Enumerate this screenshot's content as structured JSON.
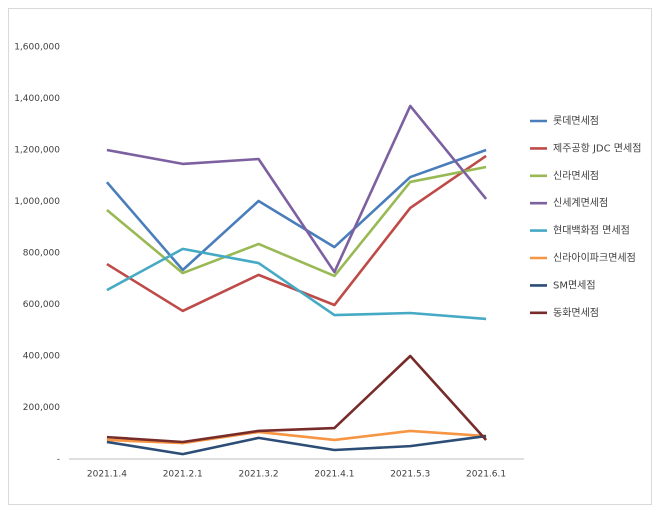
{
  "chart_data": {
    "type": "line",
    "categories": [
      "2021.1.4",
      "2021.2.1",
      "2021.3.2",
      "2021.4.1",
      "2021.5.3",
      "2021.6.1"
    ],
    "series": [
      {
        "name": "롯데면세점",
        "color": "#4a7ebb",
        "values": [
          1075000,
          734000,
          1002000,
          823000,
          1095000,
          1200000
        ]
      },
      {
        "name": "제주공항 JDC 면세점",
        "color": "#be4b48",
        "values": [
          757000,
          575000,
          715000,
          598000,
          975000,
          1177000
        ]
      },
      {
        "name": "신라면세점",
        "color": "#98b954",
        "values": [
          967000,
          722000,
          835000,
          711000,
          1076000,
          1134000
        ]
      },
      {
        "name": "신세계면세점",
        "color": "#7d60a0",
        "values": [
          1200000,
          1146000,
          1165000,
          726000,
          1371000,
          1010000
        ]
      },
      {
        "name": "현대백화점 면세점",
        "color": "#46aac5",
        "values": [
          656000,
          816000,
          761000,
          559000,
          567000,
          544000
        ]
      },
      {
        "name": "신라아이파크면세점",
        "color": "#f69544",
        "values": [
          74000,
          62000,
          105000,
          74000,
          109000,
          89000
        ]
      },
      {
        "name": "SM면세점",
        "color": "#2c4d75",
        "values": [
          66000,
          19000,
          82000,
          35000,
          50000,
          89000
        ]
      },
      {
        "name": "동화면세점",
        "color": "#772c2a",
        "values": [
          85000,
          66000,
          109000,
          120000,
          400000,
          74000
        ]
      }
    ],
    "ylim": [
      0,
      1600000
    ],
    "yticks": [
      {
        "value": 0,
        "label": "-"
      },
      {
        "value": 200000,
        "label": "200,000"
      },
      {
        "value": 400000,
        "label": "400,000"
      },
      {
        "value": 600000,
        "label": "600,000"
      },
      {
        "value": 800000,
        "label": "800,000"
      },
      {
        "value": 1000000,
        "label": "1,000,000"
      },
      {
        "value": 1200000,
        "label": "1,200,000"
      },
      {
        "value": 1400000,
        "label": "1,400,000"
      },
      {
        "value": 1600000,
        "label": "1,600,000"
      }
    ],
    "legend": "right"
  }
}
